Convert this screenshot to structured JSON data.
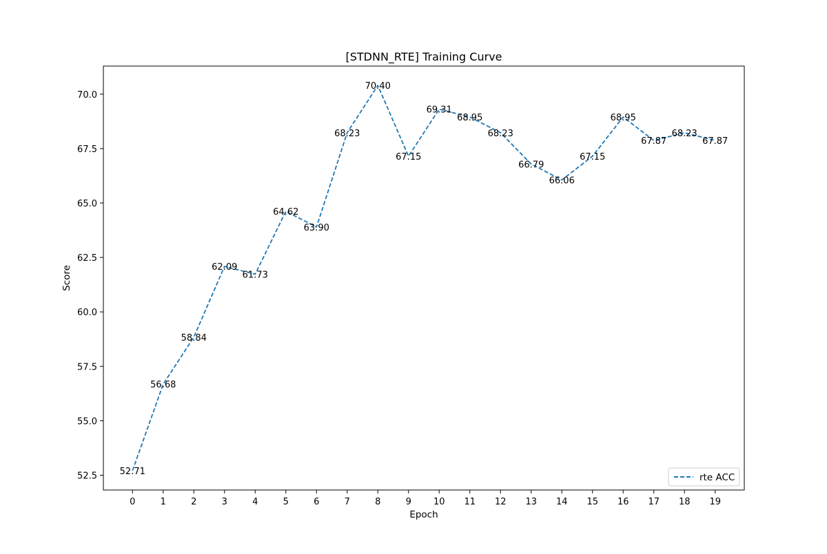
{
  "chart_data": {
    "type": "line",
    "title": "[STDNN_RTE] Training Curve",
    "xlabel": "Epoch",
    "ylabel": "Score",
    "x": [
      0,
      1,
      2,
      3,
      4,
      5,
      6,
      7,
      8,
      9,
      10,
      11,
      12,
      13,
      14,
      15,
      16,
      17,
      18,
      19
    ],
    "x_tick_labels": [
      "0",
      "1",
      "2",
      "3",
      "4",
      "5",
      "6",
      "7",
      "8",
      "9",
      "10",
      "11",
      "12",
      "13",
      "14",
      "15",
      "16",
      "17",
      "18",
      "19"
    ],
    "y_ticks": [
      52.5,
      55.0,
      57.5,
      60.0,
      62.5,
      65.0,
      67.5,
      70.0
    ],
    "y_tick_labels": [
      "52.5",
      "55.0",
      "57.5",
      "60.0",
      "62.5",
      "65.0",
      "67.5",
      "70.0"
    ],
    "series": [
      {
        "name": "rte ACC",
        "color": "#1f77b4",
        "line_style": "dashed",
        "values": [
          52.71,
          56.68,
          58.84,
          62.09,
          61.73,
          64.62,
          63.9,
          68.23,
          70.4,
          67.15,
          69.31,
          68.95,
          68.23,
          66.79,
          66.06,
          67.15,
          68.95,
          67.87,
          68.23,
          67.87
        ],
        "data_labels": [
          "52.71",
          "56.68",
          "58.84",
          "62.09",
          "61.73",
          "64.62",
          "63.90",
          "68.23",
          "70.40",
          "67.15",
          "69.31",
          "68.95",
          "68.23",
          "66.79",
          "66.06",
          "67.15",
          "68.95",
          "67.87",
          "68.23",
          "67.87"
        ]
      }
    ],
    "xlim": [
      -0.95,
      19.95
    ],
    "ylim": [
      51.82,
      71.29
    ],
    "grid": false,
    "legend_position": "lower-right"
  }
}
